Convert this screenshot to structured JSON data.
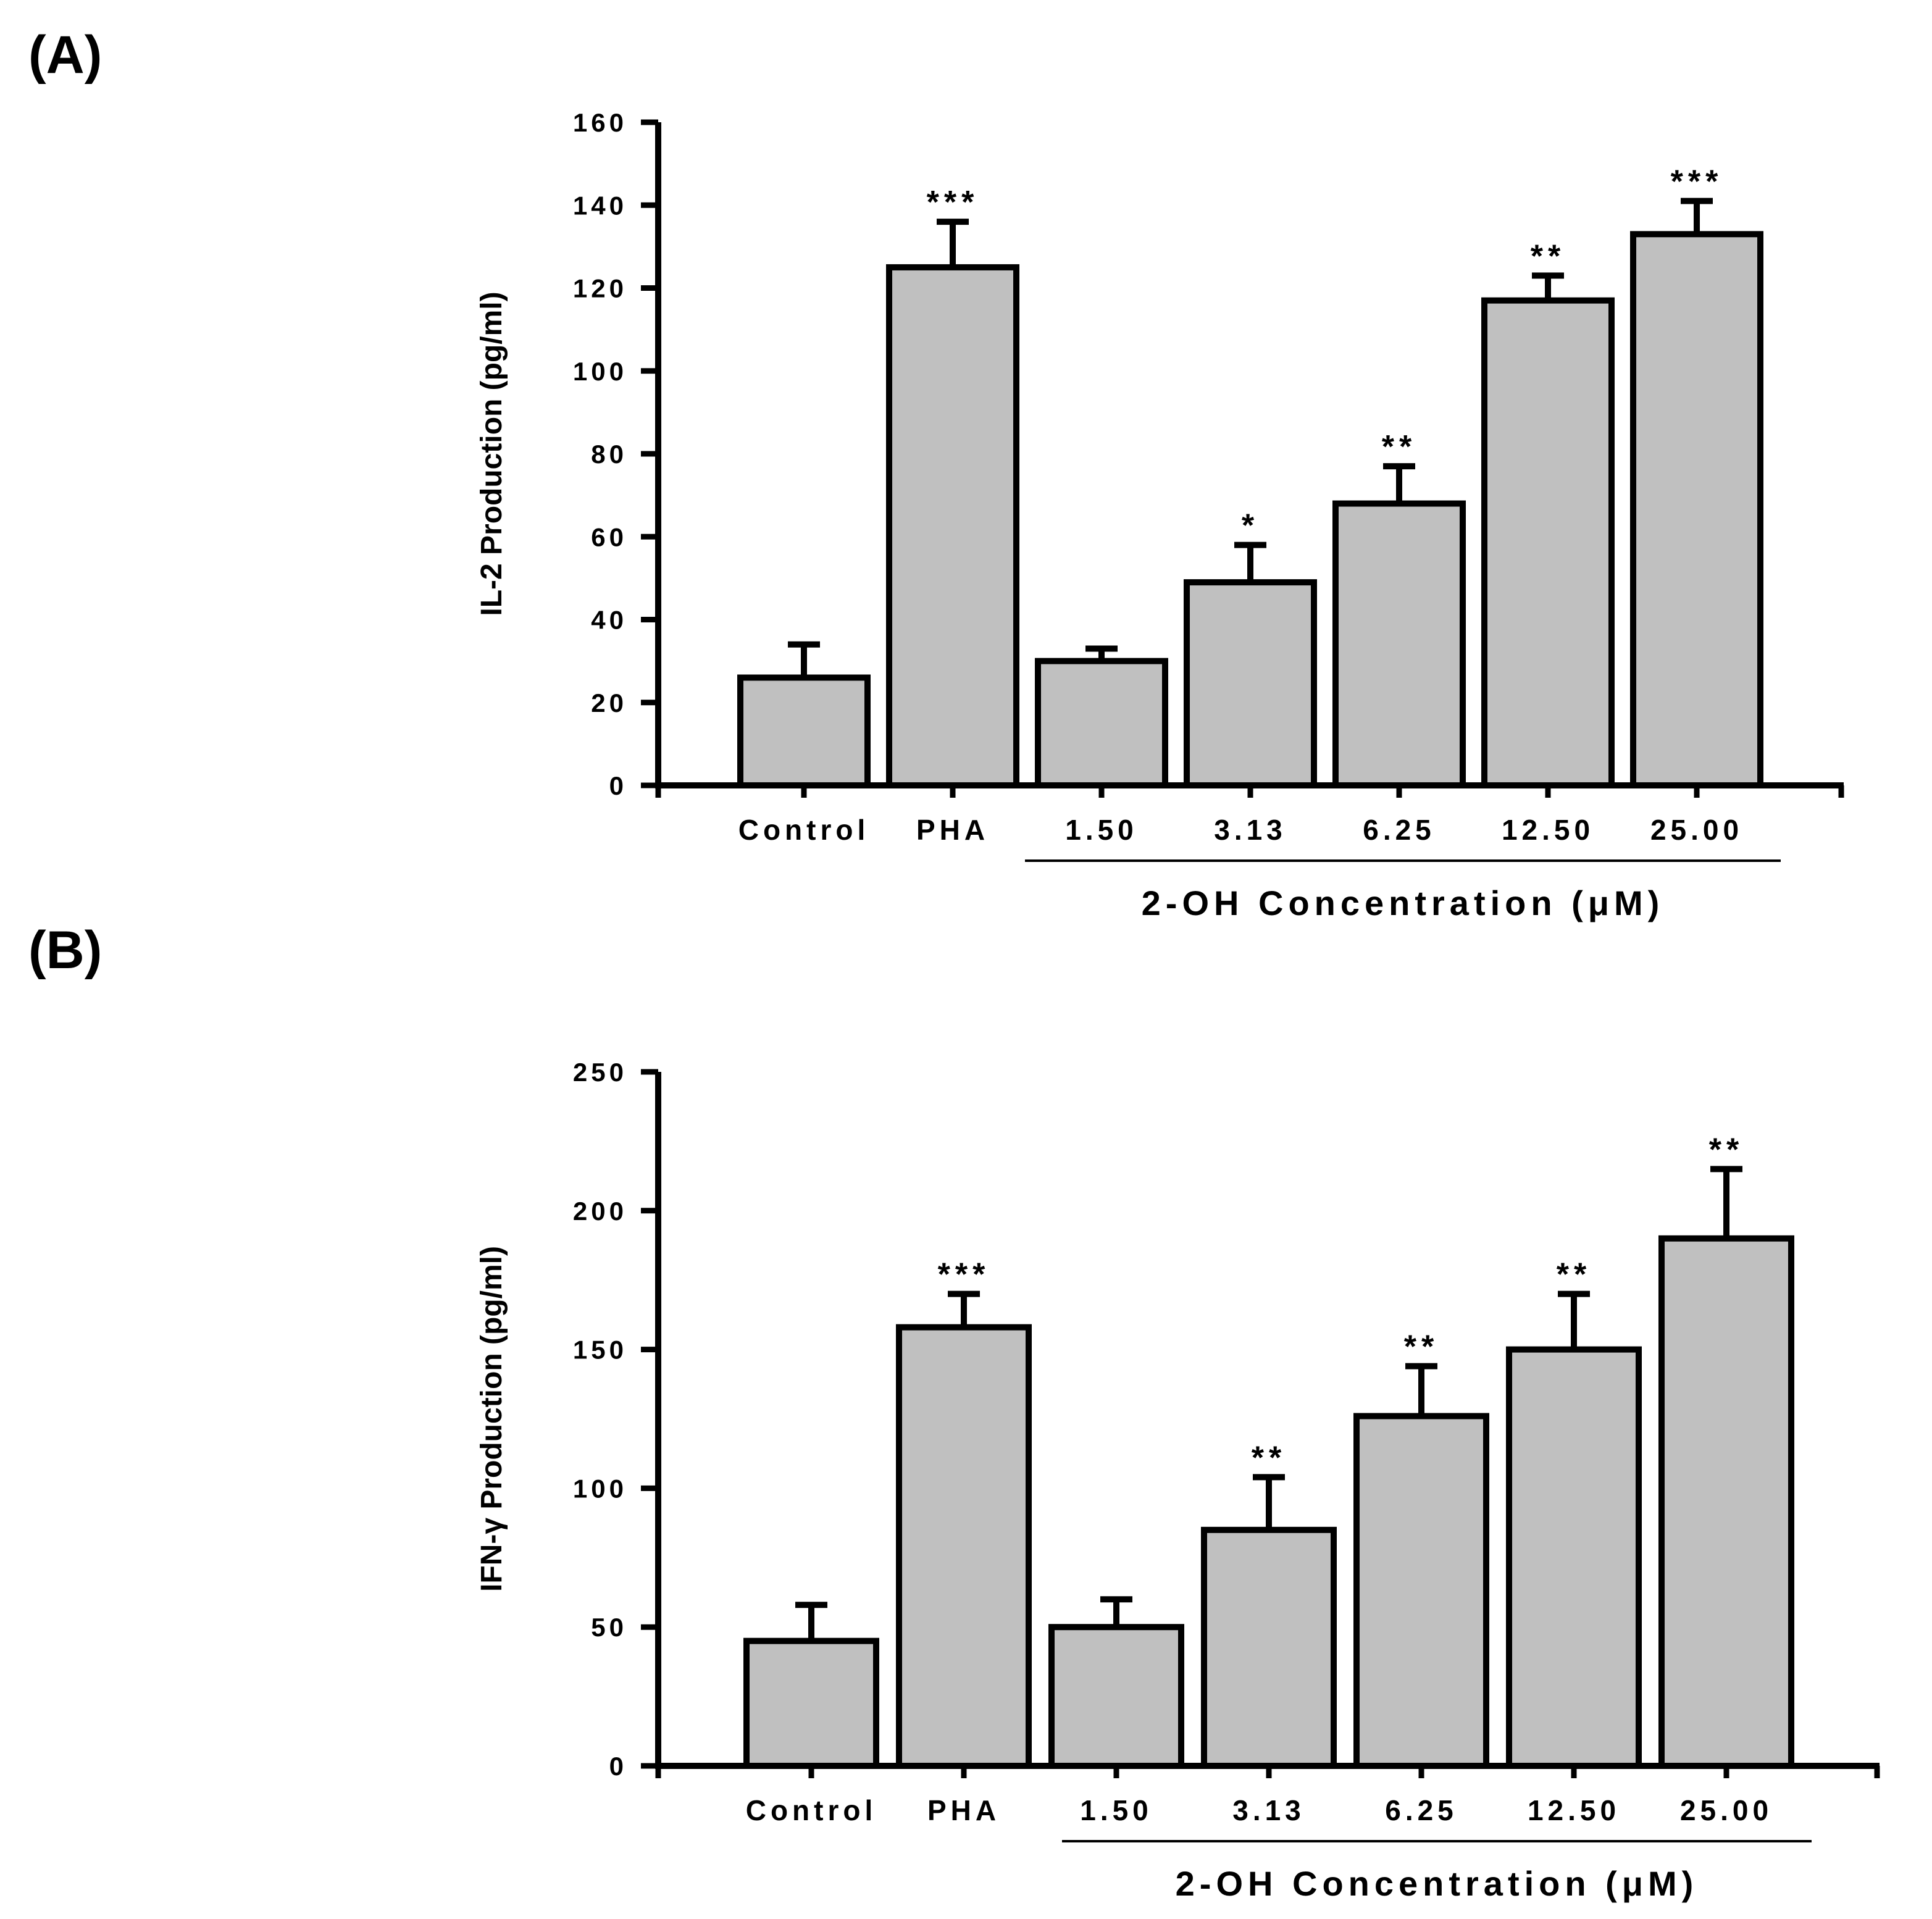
{
  "panels": {
    "a_label": "(A)",
    "b_label": "(B)"
  },
  "colors": {
    "bar_fill": "#c0c0c0",
    "stroke": "#000000"
  },
  "chart_data": [
    {
      "type": "bar",
      "panel": "(A)",
      "title": "",
      "categories": [
        "Control",
        "PHA",
        "1.50",
        "3.13",
        "6.25",
        "12.50",
        "25.00"
      ],
      "values": [
        26,
        125,
        30,
        49,
        68,
        117,
        133
      ],
      "errors": [
        8,
        11,
        3,
        9,
        9,
        6,
        8
      ],
      "significance": [
        "",
        "***",
        "",
        "*",
        "**",
        "**",
        "***"
      ],
      "xlabel": "2-OH Concentration (μM)",
      "ylabel": "IL-2 Production (pg/ml)",
      "ylim": [
        0,
        160
      ],
      "yticks": [
        0,
        20,
        40,
        60,
        80,
        100,
        120,
        140,
        160
      ],
      "grid": false
    },
    {
      "type": "bar",
      "panel": "(B)",
      "title": "",
      "categories": [
        "Control",
        "PHA",
        "1.50",
        "3.13",
        "6.25",
        "12.50",
        "25.00"
      ],
      "values": [
        45,
        158,
        50,
        85,
        126,
        150,
        190
      ],
      "errors": [
        13,
        12,
        10,
        19,
        18,
        20,
        25
      ],
      "significance": [
        "",
        "***",
        "",
        "**",
        "**",
        "**",
        "**"
      ],
      "xlabel": "2-OH Concentration (μM)",
      "ylabel": "IFN-γ Production (pg/ml)",
      "ylim": [
        0,
        250
      ],
      "yticks": [
        0,
        50,
        100,
        150,
        200,
        250
      ],
      "grid": false
    }
  ]
}
